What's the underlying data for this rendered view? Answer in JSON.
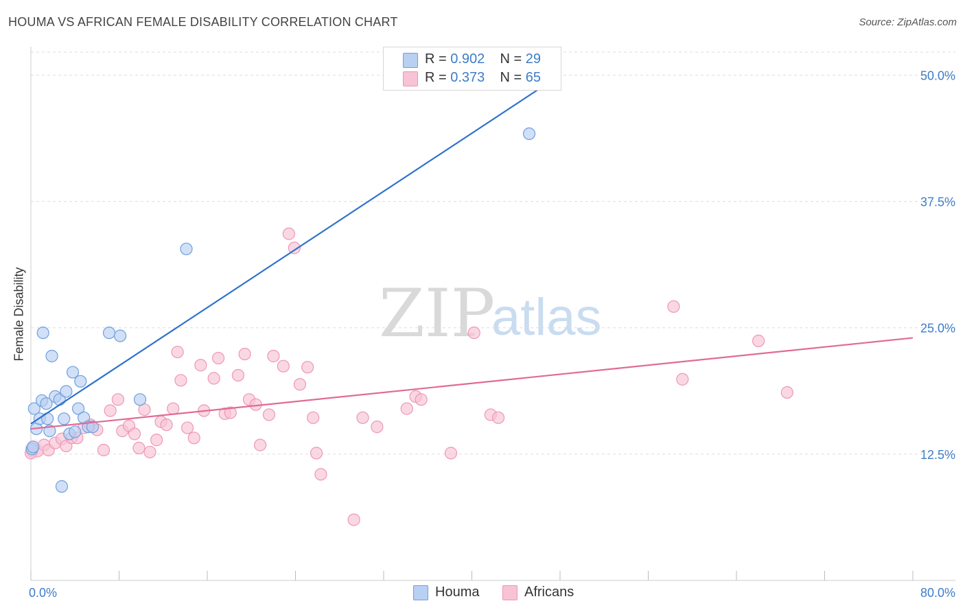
{
  "header": {
    "title": "HOUMA VS AFRICAN FEMALE DISABILITY CORRELATION CHART",
    "source": "Source: ZipAtlas.com"
  },
  "watermark": {
    "zip": "ZIP",
    "atlas": "atlas"
  },
  "legend": {
    "houma": {
      "r_label": "R =",
      "r_value": "0.902",
      "n_label": "N =",
      "n_value": "29"
    },
    "africans": {
      "r_label": "R =",
      "r_value": "0.373",
      "n_label": "N =",
      "n_value": "65"
    }
  },
  "colors": {
    "houma_fill": "#b8d0f2",
    "houma_stroke": "#6e9fdc",
    "houma_line": "#2f72cc",
    "africans_fill": "#f8c3d4",
    "africans_stroke": "#ee96b4",
    "africans_line": "#e06a96",
    "axis_text": "#3d7cc9",
    "grid": "#dddddd"
  },
  "chart_data": {
    "type": "scatter",
    "title": "HOUMA VS AFRICAN FEMALE DISABILITY CORRELATION CHART",
    "xlabel": "",
    "ylabel": "Female Disability",
    "xlim": [
      0,
      80
    ],
    "ylim": [
      0,
      52
    ],
    "y_ticks": [
      12.5,
      25.0,
      37.5,
      50.0
    ],
    "y_tick_labels": [
      "12.5%",
      "25.0%",
      "37.5%",
      "50.0%"
    ],
    "x_tick_labels": [
      "0.0%",
      "80.0%"
    ],
    "grid": true,
    "series": [
      {
        "name": "Houma",
        "r": 0.902,
        "n": 29,
        "trend": [
          [
            0,
            15.5
          ],
          [
            48,
            50.0
          ]
        ],
        "points": [
          [
            0.1,
            13.0
          ],
          [
            0.3,
            17.0
          ],
          [
            0.5,
            15.0
          ],
          [
            0.8,
            16.0
          ],
          [
            1.0,
            17.8
          ],
          [
            1.1,
            24.5
          ],
          [
            1.4,
            17.5
          ],
          [
            1.5,
            16.0
          ],
          [
            1.7,
            14.8
          ],
          [
            1.9,
            22.2
          ],
          [
            2.2,
            18.2
          ],
          [
            2.6,
            17.9
          ],
          [
            2.8,
            9.3
          ],
          [
            3.0,
            16.0
          ],
          [
            3.2,
            18.7
          ],
          [
            3.5,
            14.5
          ],
          [
            3.8,
            20.6
          ],
          [
            4.0,
            14.7
          ],
          [
            4.3,
            17.0
          ],
          [
            4.5,
            19.7
          ],
          [
            4.8,
            16.1
          ],
          [
            5.2,
            15.2
          ],
          [
            5.6,
            15.2
          ],
          [
            7.1,
            24.5
          ],
          [
            8.1,
            24.2
          ],
          [
            9.9,
            17.9
          ],
          [
            14.1,
            32.8
          ],
          [
            45.2,
            44.2
          ],
          [
            0.2,
            13.2
          ]
        ]
      },
      {
        "name": "Africans",
        "r": 0.373,
        "n": 65,
        "trend": [
          [
            0,
            15.0
          ],
          [
            80,
            24.0
          ]
        ],
        "points": [
          [
            0.1,
            12.8
          ],
          [
            0.6,
            12.8
          ],
          [
            1.2,
            13.4
          ],
          [
            1.6,
            12.9
          ],
          [
            2.2,
            13.6
          ],
          [
            2.8,
            14.0
          ],
          [
            3.2,
            13.3
          ],
          [
            3.7,
            14.1
          ],
          [
            4.2,
            14.1
          ],
          [
            4.8,
            15.1
          ],
          [
            5.4,
            15.4
          ],
          [
            6.0,
            14.9
          ],
          [
            6.6,
            12.9
          ],
          [
            7.2,
            16.8
          ],
          [
            7.9,
            17.9
          ],
          [
            8.3,
            14.8
          ],
          [
            8.9,
            15.3
          ],
          [
            9.4,
            14.5
          ],
          [
            9.8,
            13.1
          ],
          [
            10.3,
            16.9
          ],
          [
            10.8,
            12.7
          ],
          [
            11.4,
            13.9
          ],
          [
            11.8,
            15.7
          ],
          [
            12.3,
            15.4
          ],
          [
            12.9,
            17.0
          ],
          [
            13.3,
            22.6
          ],
          [
            13.6,
            19.8
          ],
          [
            14.2,
            15.1
          ],
          [
            14.8,
            14.1
          ],
          [
            15.4,
            21.3
          ],
          [
            15.7,
            16.8
          ],
          [
            16.6,
            20.0
          ],
          [
            17.0,
            22.0
          ],
          [
            17.6,
            16.5
          ],
          [
            18.1,
            16.6
          ],
          [
            18.8,
            20.3
          ],
          [
            19.4,
            22.4
          ],
          [
            19.8,
            17.9
          ],
          [
            20.4,
            17.4
          ],
          [
            20.8,
            13.4
          ],
          [
            21.6,
            16.4
          ],
          [
            22.0,
            22.2
          ],
          [
            22.9,
            21.2
          ],
          [
            23.4,
            34.3
          ],
          [
            23.9,
            32.9
          ],
          [
            24.4,
            19.4
          ],
          [
            25.1,
            21.1
          ],
          [
            25.6,
            16.1
          ],
          [
            25.9,
            12.6
          ],
          [
            26.3,
            10.5
          ],
          [
            29.3,
            6.0
          ],
          [
            30.1,
            16.1
          ],
          [
            31.4,
            15.2
          ],
          [
            34.1,
            17.0
          ],
          [
            34.9,
            18.2
          ],
          [
            35.4,
            17.9
          ],
          [
            38.1,
            12.6
          ],
          [
            40.2,
            24.5
          ],
          [
            41.7,
            16.4
          ],
          [
            42.4,
            16.1
          ],
          [
            58.3,
            27.1
          ],
          [
            59.1,
            19.9
          ],
          [
            66.0,
            23.7
          ],
          [
            68.6,
            18.6
          ],
          [
            0.0,
            12.6
          ]
        ]
      }
    ]
  }
}
